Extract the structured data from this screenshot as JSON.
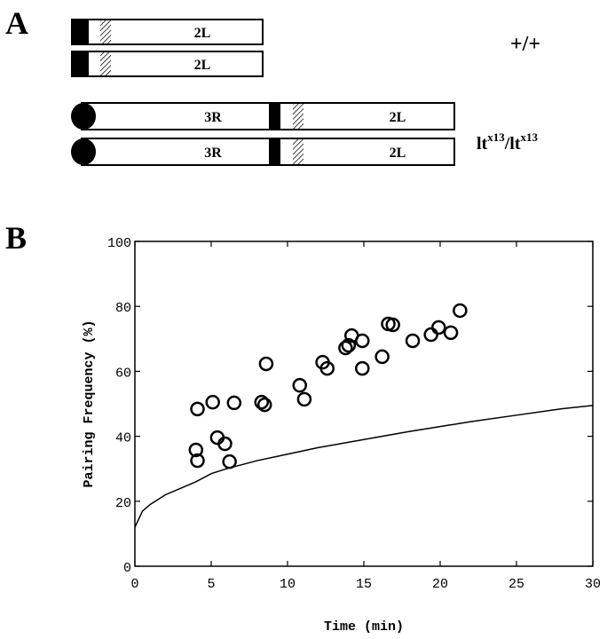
{
  "panel_labels": [
    "A",
    "B"
  ],
  "diagram": {
    "wt_rows": [
      {
        "arm": "2L"
      },
      {
        "arm": "2L"
      }
    ],
    "mut_rows": [
      {
        "left_arm": "3R",
        "right_arm": "2L"
      },
      {
        "left_arm": "3R",
        "right_arm": "2L"
      }
    ],
    "genotype_wt": "+/+",
    "genotype_mut": [
      "lt",
      "x13",
      "/lt",
      "x13"
    ]
  },
  "chart_data": {
    "type": "scatter",
    "x_label": "Time (min)",
    "y_label": "Pairing Frequency (%)",
    "xlim": [
      0,
      30
    ],
    "ylim": [
      0,
      100
    ],
    "xticks": [
      0,
      5,
      10,
      15,
      20,
      25,
      30
    ],
    "yticks": [
      0,
      20,
      40,
      60,
      80,
      100
    ],
    "grid": false,
    "series": [
      {
        "type": "scatter",
        "color": "#000000",
        "x": [
          4.1,
          5.1,
          6.5,
          5.4,
          5.9,
          6.2,
          4.0,
          4.1,
          8.3,
          8.5,
          8.6,
          10.8,
          11.1,
          12.3,
          12.6,
          13.8,
          14.0,
          14.2,
          14.9,
          14.9,
          16.2,
          16.6,
          16.9,
          18.2,
          19.4,
          19.9,
          20.7,
          21.3
        ],
        "values": [
          48.4,
          50.5,
          50.3,
          39.6,
          37.7,
          32.2,
          35.8,
          32.5,
          50.5,
          49.7,
          62.3,
          55.7,
          51.4,
          62.8,
          60.9,
          67.2,
          68.0,
          71.0,
          69.4,
          60.9,
          64.5,
          74.6,
          74.3,
          69.4,
          71.3,
          73.5,
          71.9,
          78.7
        ]
      },
      {
        "type": "line",
        "color": "#000000",
        "x": [
          0,
          0.5,
          1,
          2,
          3,
          4,
          5,
          6,
          8,
          10,
          12,
          15,
          18,
          20,
          22,
          25,
          28,
          30
        ],
        "values": [
          12,
          17,
          19,
          22,
          24,
          26,
          28.5,
          30,
          32.5,
          34.5,
          36.5,
          39,
          41.5,
          43,
          44.5,
          46.5,
          48.5,
          49.5
        ]
      }
    ]
  }
}
